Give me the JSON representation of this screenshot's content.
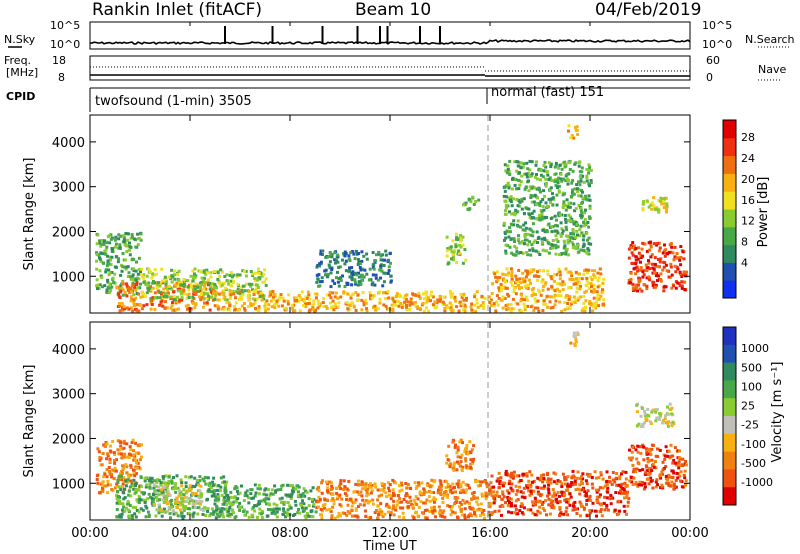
{
  "header": {
    "station": "Rankin Inlet (fitACF)",
    "beam": "Beam 10",
    "date": "04/Feb/2019"
  },
  "noise_panel": {
    "left_label": "N.Sky",
    "left_top": "10^5",
    "left_bottom": "10^0",
    "right_label": "N.Search",
    "right_top": "10^5",
    "right_bottom": "10^0",
    "spike_hours": [
      5.4,
      7.3,
      9.3,
      10.7,
      11.6,
      11.9,
      13.2,
      14.0
    ]
  },
  "freq_panel": {
    "left_label": "Freq.",
    "left_unit": "[MHz]",
    "left_top": "18",
    "left_bottom": "8",
    "right_label": "Nave",
    "right_top": "60",
    "right_bottom": "0"
  },
  "cpid_panel": {
    "label": "CPID",
    "modes": [
      "twofsound (1-min) 3505",
      "normal (fast) 151"
    ],
    "switch_hour": 15.8
  },
  "chart_data": [
    {
      "type": "heatmap",
      "xlabel": "",
      "ylabel": "Slant Range [km]",
      "x_ticks": [
        "00:00",
        "04:00",
        "08:00",
        "12:00",
        "16:00",
        "20:00",
        "00:00"
      ],
      "y_ticks": [
        "1000",
        "2000",
        "3000",
        "4000"
      ],
      "x_range": [
        0,
        24
      ],
      "y_range": [
        180,
        4600
      ],
      "colorbar": {
        "label": "Power [dB]",
        "ticks": [
          "4",
          "8",
          "12",
          "16",
          "20",
          "24",
          "28"
        ],
        "colors": [
          "#1030f0",
          "#2050b0",
          "#308a60",
          "#48a848",
          "#88cc30",
          "#f0e020",
          "#f8b010",
          "#f07010",
          "#f03010",
          "#e00000"
        ]
      },
      "regions": [
        {
          "t0": 0.2,
          "t1": 2.0,
          "r0": 600,
          "r1": 2000,
          "level": 3
        },
        {
          "t0": 1.0,
          "t1": 5.0,
          "r0": 250,
          "r1": 900,
          "level": 7
        },
        {
          "t0": 2.0,
          "t1": 7.0,
          "r0": 500,
          "r1": 1200,
          "level": 4
        },
        {
          "t0": 5.0,
          "t1": 16.0,
          "r0": 250,
          "r1": 700,
          "level": 6
        },
        {
          "t0": 9.0,
          "t1": 12.0,
          "r0": 800,
          "r1": 1600,
          "level": 2
        },
        {
          "t0": 14.2,
          "t1": 15.0,
          "r0": 1300,
          "r1": 2000,
          "level": 4
        },
        {
          "t0": 14.8,
          "t1": 15.5,
          "r0": 2500,
          "r1": 2800,
          "level": 3
        },
        {
          "t0": 16.0,
          "t1": 20.5,
          "r0": 250,
          "r1": 1200,
          "level": 6
        },
        {
          "t0": 19.0,
          "t1": 19.5,
          "r0": 4100,
          "r1": 4400,
          "level": 6
        },
        {
          "t0": 21.5,
          "t1": 23.8,
          "r0": 700,
          "r1": 1800,
          "level": 8
        },
        {
          "t0": 22.0,
          "t1": 23.2,
          "r0": 2400,
          "r1": 2800,
          "level": 5
        },
        {
          "t0": 16.5,
          "t1": 20.0,
          "r0": 1500,
          "r1": 3600,
          "level": 3
        }
      ]
    },
    {
      "type": "heatmap",
      "xlabel": "Time UT",
      "ylabel": "Slant Range [km]",
      "x_ticks": [
        "00:00",
        "04:00",
        "08:00",
        "12:00",
        "16:00",
        "20:00",
        "00:00"
      ],
      "y_ticks": [
        "1000",
        "2000",
        "3000",
        "4000"
      ],
      "x_range": [
        0,
        24
      ],
      "y_range": [
        180,
        4600
      ],
      "colorbar": {
        "label": "Velocity [m s⁻¹]",
        "ticks": [
          "1000",
          "500",
          "100",
          "25",
          "-25",
          "-100",
          "-500",
          "-1000"
        ],
        "colors": [
          "#2030c0",
          "#2050b0",
          "#308a60",
          "#48a848",
          "#88cc30",
          "#c0c0b8",
          "#f8b010",
          "#f08010",
          "#f05010",
          "#e00000"
        ]
      },
      "regions": [
        {
          "t0": 0.2,
          "t1": 2.0,
          "r0": 800,
          "r1": 2000,
          "level": 7
        },
        {
          "t0": 1.0,
          "t1": 5.5,
          "r0": 250,
          "r1": 1200,
          "level": 3
        },
        {
          "t0": 2.5,
          "t1": 4.5,
          "r0": 400,
          "r1": 1000,
          "level": 5
        },
        {
          "t0": 5.0,
          "t1": 9.0,
          "r0": 250,
          "r1": 1000,
          "level": 3
        },
        {
          "t0": 9.0,
          "t1": 16.0,
          "r0": 250,
          "r1": 1100,
          "level": 7
        },
        {
          "t0": 14.2,
          "t1": 15.3,
          "r0": 1300,
          "r1": 2000,
          "level": 7
        },
        {
          "t0": 16.0,
          "t1": 21.5,
          "r0": 300,
          "r1": 1300,
          "level": 8
        },
        {
          "t0": 21.5,
          "t1": 23.8,
          "r0": 900,
          "r1": 1900,
          "level": 8
        },
        {
          "t0": 21.8,
          "t1": 23.3,
          "r0": 2300,
          "r1": 2800,
          "level": 5
        },
        {
          "t0": 19.0,
          "t1": 19.5,
          "r0": 4100,
          "r1": 4400,
          "level": 6
        }
      ]
    }
  ]
}
